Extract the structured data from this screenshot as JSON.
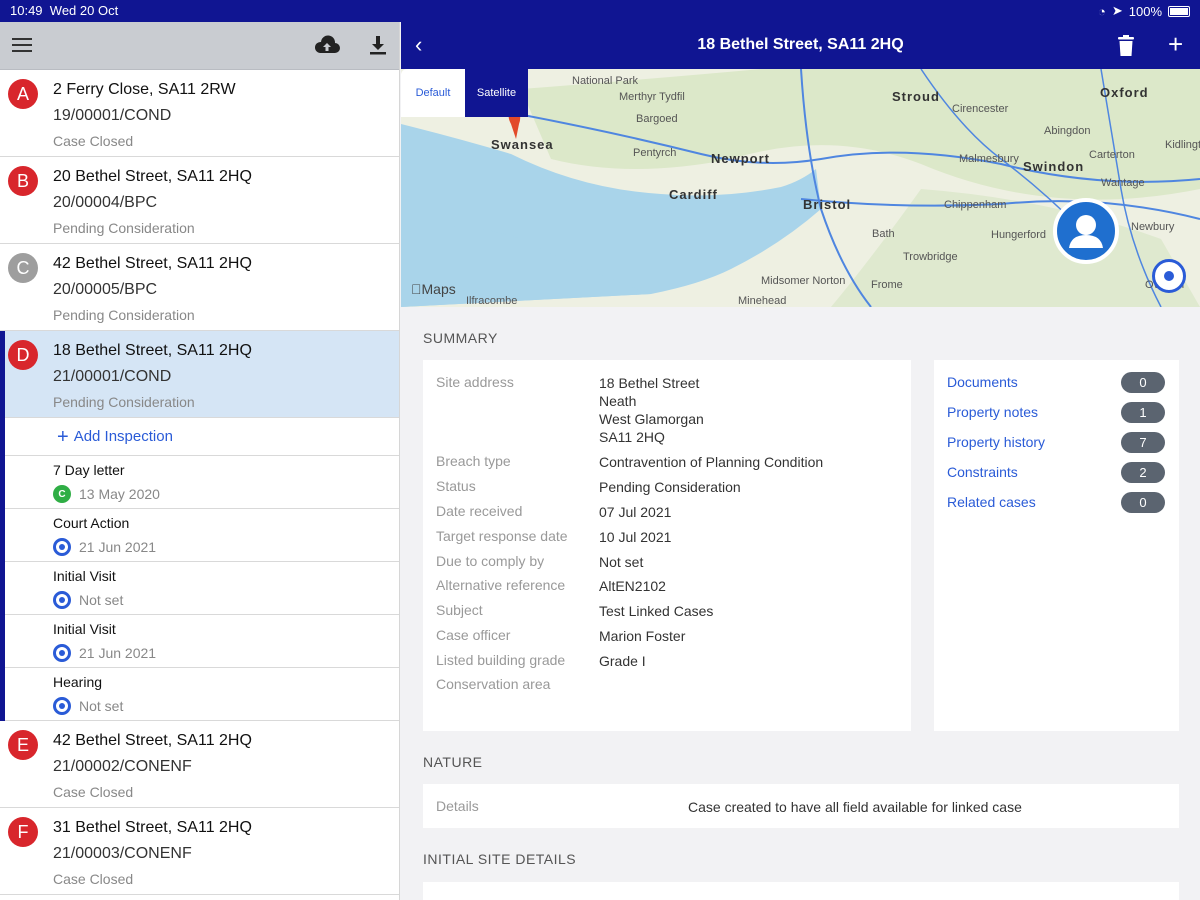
{
  "statusbar": {
    "time": "10:49",
    "date": "Wed 20 Oct",
    "battery": "100%"
  },
  "left": {
    "cases_top": [
      {
        "letter": "A",
        "color": "#d8262c",
        "address": "2 Ferry Close, SA11 2RW",
        "ref": "19/00001/COND",
        "status": "Case Closed"
      },
      {
        "letter": "B",
        "color": "#d8262c",
        "address": "20 Bethel Street, SA11 2HQ",
        "ref": "20/00004/BPC",
        "status": "Pending Consideration"
      },
      {
        "letter": "C",
        "color": "#9e9e9e",
        "address": "42 Bethel Street, SA11 2HQ",
        "ref": "20/00005/BPC",
        "status": "Pending Consideration"
      }
    ],
    "selected_case": {
      "letter": "D",
      "color": "#d8262c",
      "address": "18 Bethel Street, SA11 2HQ",
      "ref": "21/00001/COND",
      "status": "Pending Consideration"
    },
    "add_inspection": "Add Inspection",
    "inspections": [
      {
        "name": "7 Day letter",
        "date": "13 May 2020",
        "icon": "completed"
      },
      {
        "name": "Court Action",
        "date": "21 Jun 2021",
        "icon": "scheduled"
      },
      {
        "name": "Initial Visit",
        "date": "Not set",
        "icon": "scheduled"
      },
      {
        "name": "Initial Visit",
        "date": "21 Jun 2021",
        "icon": "scheduled"
      },
      {
        "name": "Hearing",
        "date": "Not set",
        "icon": "scheduled"
      }
    ],
    "cases_bottom": [
      {
        "letter": "E",
        "color": "#d8262c",
        "address": "42 Bethel Street, SA11 2HQ",
        "ref": "21/00002/CONENF",
        "status": "Case Closed"
      },
      {
        "letter": "F",
        "color": "#d8262c",
        "address": "31 Bethel Street, SA11 2HQ",
        "ref": "21/00003/CONENF",
        "status": "Case Closed"
      }
    ]
  },
  "navbar": {
    "title": "18 Bethel Street, SA11 2HQ"
  },
  "map": {
    "segments": {
      "default": "Default",
      "satellite": "Satellite"
    },
    "attribution": "Maps",
    "labels": [
      "National Park",
      "Merthyr Tydfil",
      "Bargoed",
      "Pentyrch",
      "Newport",
      "Cardiff",
      "Swansea",
      "Bristol",
      "Stroud",
      "Cirencester",
      "Oxford",
      "Abingdon",
      "Malmesbury",
      "Swindon",
      "Chippenham",
      "Bath",
      "Trowbridge",
      "Hungerford",
      "Midsomer Norton",
      "Minehead",
      "Ilfracombe",
      "Kidlington",
      "Carterton",
      "Wantage",
      "Newbury",
      "Overton",
      "Frome"
    ]
  },
  "summary": {
    "heading": "SUMMARY",
    "fields": [
      {
        "label": "Site address",
        "value": "18 Bethel Street\nNeath\nWest Glamorgan\nSA11 2HQ"
      },
      {
        "label": "Breach type",
        "value": "Contravention of Planning Condition"
      },
      {
        "label": "Status",
        "value": "Pending Consideration"
      },
      {
        "label": "Date received",
        "value": "07 Jul 2021"
      },
      {
        "label": "Target response date",
        "value": "10 Jul 2021"
      },
      {
        "label": "Due to comply by",
        "value": "Not set"
      },
      {
        "label": "Alternative reference",
        "value": "AltEN2102"
      },
      {
        "label": "Subject",
        "value": "Test Linked Cases"
      },
      {
        "label": "Case officer",
        "value": "Marion Foster"
      },
      {
        "label": "Listed building grade",
        "value": "Grade I"
      },
      {
        "label": "Conservation area",
        "value": ""
      }
    ],
    "links": [
      {
        "label": "Documents",
        "count": "0"
      },
      {
        "label": "Property notes",
        "count": "1"
      },
      {
        "label": "Property history",
        "count": "7"
      },
      {
        "label": "Constraints",
        "count": "2"
      },
      {
        "label": "Related cases",
        "count": "0"
      }
    ]
  },
  "nature": {
    "heading": "NATURE",
    "label": "Details",
    "value": "Case created to have all field available for linked case"
  },
  "initial": {
    "heading": "INITIAL SITE DETAILS"
  }
}
